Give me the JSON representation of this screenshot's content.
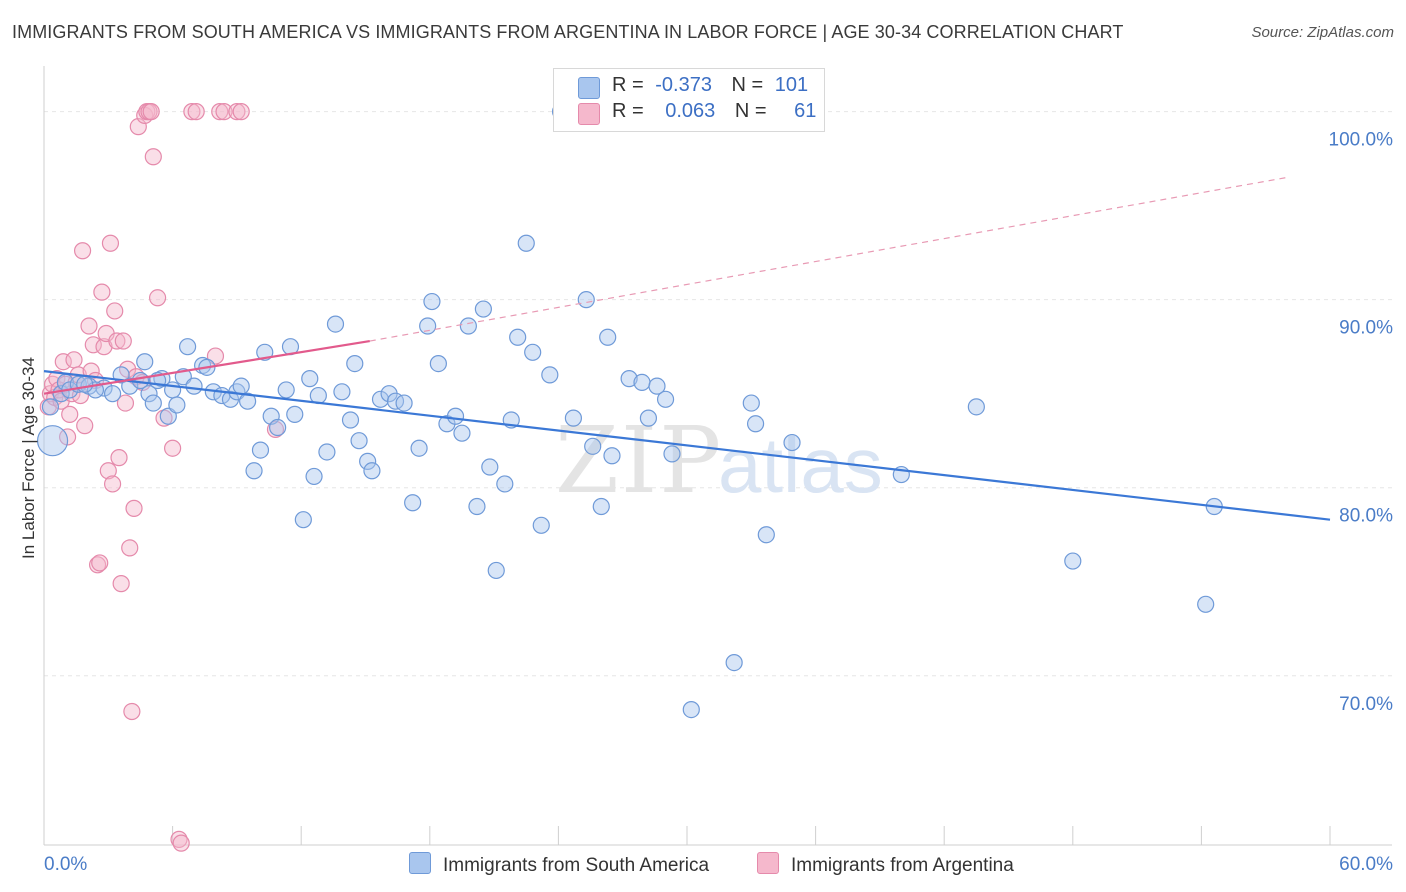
{
  "title": "IMMIGRANTS FROM SOUTH AMERICA VS IMMIGRANTS FROM ARGENTINA IN LABOR FORCE | AGE 30-34 CORRELATION CHART",
  "source": "Source: ZipAtlas.com",
  "watermark": {
    "zip": "ZIP",
    "atlas": "atlas"
  },
  "legend": {
    "r_label": "R =",
    "n_label": "N =",
    "rows": [
      {
        "r": "-0.373",
        "n": "101",
        "color": "#a9c6ee"
      },
      {
        "r": "0.063",
        "n": "61",
        "color": "#f5b8cc"
      }
    ]
  },
  "bottom_legend": [
    "Immigrants from South America",
    "Immigrants from Argentina"
  ],
  "chart_data": {
    "type": "scatter",
    "title": "IMMIGRANTS FROM SOUTH AMERICA VS IMMIGRANTS FROM ARGENTINA IN LABOR FORCE | AGE 30-34 CORRELATION CHART",
    "xlabel": "",
    "ylabel": "In Labor Force | Age 30-34",
    "xlim": [
      0,
      60
    ],
    "ylim": [
      61,
      102
    ],
    "x_tick_labels": [
      "0.0%",
      "60.0%"
    ],
    "y_ticks": [
      70,
      80,
      90,
      100
    ],
    "y_tick_labels": [
      "70.0%",
      "80.0%",
      "90.0%",
      "100.0%"
    ],
    "grid": true,
    "legend_position": "top-center",
    "series": [
      {
        "name": "Immigrants from South America",
        "color": "#a9c6ee",
        "edge": "#6f9ad8",
        "trend": {
          "x": [
            0,
            60
          ],
          "y": [
            86.2,
            78.3
          ],
          "color": "#3b78d6",
          "style": "solid"
        },
        "points": [
          [
            0.4,
            82.5
          ],
          [
            0.3,
            84.3
          ],
          [
            0.8,
            85.0
          ],
          [
            1.0,
            85.6
          ],
          [
            1.2,
            85.2
          ],
          [
            1.6,
            85.5
          ],
          [
            2.1,
            85.4
          ],
          [
            2.8,
            85.3
          ],
          [
            3.6,
            86.0
          ],
          [
            4.0,
            85.4
          ],
          [
            4.5,
            85.7
          ],
          [
            4.7,
            86.7
          ],
          [
            4.9,
            85.0
          ],
          [
            5.1,
            84.5
          ],
          [
            5.5,
            85.8
          ],
          [
            5.8,
            83.8
          ],
          [
            6.0,
            85.2
          ],
          [
            6.2,
            84.4
          ],
          [
            6.5,
            85.9
          ],
          [
            6.7,
            87.5
          ],
          [
            7.0,
            85.4
          ],
          [
            7.4,
            86.5
          ],
          [
            7.6,
            86.4
          ],
          [
            7.9,
            85.1
          ],
          [
            8.3,
            84.9
          ],
          [
            8.7,
            84.7
          ],
          [
            9.0,
            85.1
          ],
          [
            9.2,
            85.4
          ],
          [
            9.5,
            84.6
          ],
          [
            9.8,
            80.9
          ],
          [
            10.1,
            82.0
          ],
          [
            10.3,
            87.2
          ],
          [
            10.6,
            83.8
          ],
          [
            10.9,
            83.2
          ],
          [
            11.3,
            85.2
          ],
          [
            11.5,
            87.5
          ],
          [
            11.7,
            83.9
          ],
          [
            12.1,
            78.3
          ],
          [
            12.4,
            85.8
          ],
          [
            12.6,
            80.6
          ],
          [
            12.8,
            84.9
          ],
          [
            13.2,
            81.9
          ],
          [
            13.6,
            88.7
          ],
          [
            13.9,
            85.1
          ],
          [
            14.3,
            83.6
          ],
          [
            14.5,
            86.6
          ],
          [
            14.7,
            82.5
          ],
          [
            15.1,
            81.4
          ],
          [
            15.3,
            80.9
          ],
          [
            15.7,
            84.7
          ],
          [
            16.1,
            85.0
          ],
          [
            16.4,
            84.6
          ],
          [
            16.8,
            84.5
          ],
          [
            17.2,
            79.2
          ],
          [
            17.5,
            82.1
          ],
          [
            17.9,
            88.6
          ],
          [
            18.1,
            89.9
          ],
          [
            18.4,
            86.6
          ],
          [
            18.8,
            83.4
          ],
          [
            19.2,
            83.8
          ],
          [
            19.5,
            82.9
          ],
          [
            19.8,
            88.6
          ],
          [
            20.2,
            79.0
          ],
          [
            20.5,
            89.5
          ],
          [
            20.8,
            81.1
          ],
          [
            21.1,
            75.6
          ],
          [
            21.5,
            80.2
          ],
          [
            21.8,
            83.6
          ],
          [
            22.1,
            88.0
          ],
          [
            22.5,
            93.0
          ],
          [
            22.8,
            87.2
          ],
          [
            23.2,
            78.0
          ],
          [
            23.6,
            86.0
          ],
          [
            24.1,
            100.0
          ],
          [
            24.7,
            83.7
          ],
          [
            25.3,
            90.0
          ],
          [
            25.6,
            82.2
          ],
          [
            26.0,
            79.0
          ],
          [
            26.3,
            88.0
          ],
          [
            26.5,
            81.7
          ],
          [
            27.3,
            85.8
          ],
          [
            27.9,
            85.6
          ],
          [
            28.2,
            83.7
          ],
          [
            28.6,
            85.4
          ],
          [
            29.0,
            84.7
          ],
          [
            29.3,
            81.8
          ],
          [
            30.2,
            68.2
          ],
          [
            32.2,
            70.7
          ],
          [
            33.0,
            84.5
          ],
          [
            33.2,
            83.4
          ],
          [
            33.7,
            77.5
          ],
          [
            34.9,
            82.4
          ],
          [
            40.0,
            80.7
          ],
          [
            43.5,
            84.3
          ],
          [
            48.0,
            76.1
          ],
          [
            54.2,
            73.8
          ],
          [
            54.6,
            79.0
          ],
          [
            3.2,
            85.0
          ],
          [
            5.3,
            85.7
          ],
          [
            2.4,
            85.2
          ],
          [
            1.9,
            85.5
          ]
        ]
      },
      {
        "name": "Immigrants from Argentina",
        "color": "#f5b8cc",
        "edge": "#e58aab",
        "trend": {
          "x": [
            0,
            15.2
          ],
          "y": [
            85.0,
            87.8
          ],
          "color": "#e25a8c",
          "style": "solid"
        },
        "trend_extended": {
          "x": [
            15.2,
            58
          ],
          "y": [
            87.8,
            96.5
          ],
          "color": "#e89ab4",
          "style": "dashed"
        },
        "points": [
          [
            0.2,
            84.3
          ],
          [
            0.3,
            85.0
          ],
          [
            0.4,
            85.5
          ],
          [
            0.5,
            84.8
          ],
          [
            0.6,
            85.8
          ],
          [
            0.7,
            85.2
          ],
          [
            0.8,
            84.6
          ],
          [
            0.9,
            86.7
          ],
          [
            1.0,
            85.5
          ],
          [
            1.1,
            82.7
          ],
          [
            1.2,
            83.9
          ],
          [
            1.3,
            85.0
          ],
          [
            1.4,
            86.8
          ],
          [
            1.5,
            85.6
          ],
          [
            1.6,
            86.0
          ],
          [
            1.7,
            84.9
          ],
          [
            1.8,
            92.6
          ],
          [
            1.9,
            83.3
          ],
          [
            2.1,
            88.6
          ],
          [
            2.2,
            86.2
          ],
          [
            2.3,
            87.6
          ],
          [
            2.4,
            85.7
          ],
          [
            2.5,
            75.9
          ],
          [
            2.6,
            76.0
          ],
          [
            2.7,
            90.4
          ],
          [
            2.8,
            87.5
          ],
          [
            2.9,
            88.2
          ],
          [
            3.0,
            80.9
          ],
          [
            3.1,
            93.0
          ],
          [
            3.2,
            80.2
          ],
          [
            3.3,
            89.4
          ],
          [
            3.4,
            87.8
          ],
          [
            3.5,
            81.6
          ],
          [
            3.6,
            74.9
          ],
          [
            3.7,
            87.8
          ],
          [
            3.8,
            84.5
          ],
          [
            3.9,
            86.3
          ],
          [
            4.0,
            76.8
          ],
          [
            4.1,
            68.1
          ],
          [
            4.2,
            78.9
          ],
          [
            4.3,
            85.9
          ],
          [
            4.4,
            99.2
          ],
          [
            4.6,
            85.6
          ],
          [
            4.7,
            99.8
          ],
          [
            4.8,
            100.0
          ],
          [
            4.9,
            100.0
          ],
          [
            5.0,
            100.0
          ],
          [
            5.1,
            97.6
          ],
          [
            5.3,
            90.1
          ],
          [
            5.6,
            83.7
          ],
          [
            6.0,
            82.1
          ],
          [
            6.3,
            61.3
          ],
          [
            6.4,
            61.1
          ],
          [
            6.9,
            100.0
          ],
          [
            7.1,
            100.0
          ],
          [
            8.0,
            87.0
          ],
          [
            8.2,
            100.0
          ],
          [
            8.4,
            100.0
          ],
          [
            9.0,
            100.0
          ],
          [
            9.2,
            100.0
          ],
          [
            10.8,
            83.1
          ]
        ]
      }
    ]
  }
}
